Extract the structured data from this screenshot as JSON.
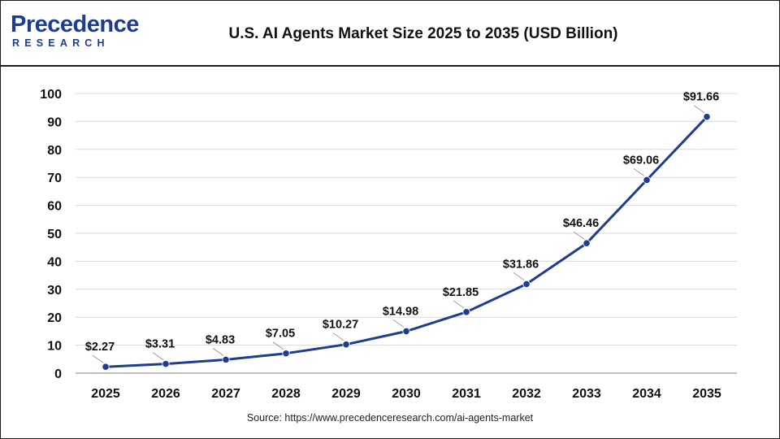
{
  "header": {
    "logo_main": "Precedence",
    "logo_sub": "RESEARCH",
    "title": "U.S. AI Agents Market Size 2025 to 2035 (USD Billion)"
  },
  "source": "Source: https://www.precedenceresearch.com/ai-agents-market",
  "colors": {
    "line": "#1f3d8f",
    "point": "#1f3d8f",
    "grid": "#d9d9d9",
    "text": "#111111"
  },
  "chart_data": {
    "type": "line",
    "title": "U.S. AI Agents Market Size 2025 to 2035 (USD Billion)",
    "xlabel": "",
    "ylabel": "",
    "categories": [
      "2025",
      "2026",
      "2027",
      "2028",
      "2029",
      "2030",
      "2031",
      "2032",
      "2033",
      "2034",
      "2035"
    ],
    "series": [
      {
        "values": [
          2.27,
          3.31,
          4.83,
          7.05,
          10.27,
          14.98,
          21.85,
          31.86,
          46.46,
          69.06,
          91.66
        ],
        "labels": [
          "$2.27",
          "$3.31",
          "$4.83",
          "$7.05",
          "$10.27",
          "$14.98",
          "$21.85",
          "$31.86",
          "$46.46",
          "$69.06",
          "$91.66"
        ]
      }
    ],
    "ylim": [
      0,
      100
    ],
    "yticks": [
      0,
      10,
      20,
      30,
      40,
      50,
      60,
      70,
      80,
      90,
      100
    ],
    "grid": true,
    "legend": "none"
  }
}
